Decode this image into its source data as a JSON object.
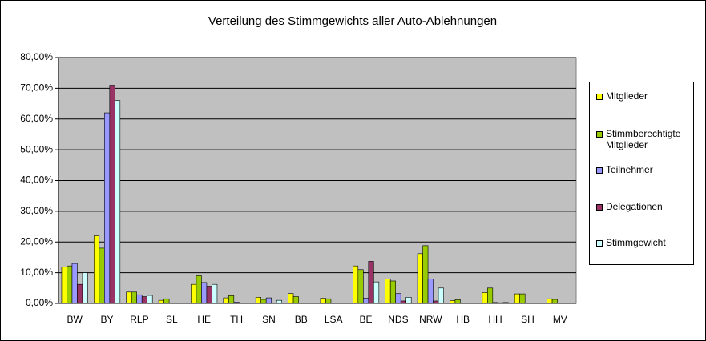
{
  "chart_data": {
    "type": "bar",
    "title": "Verteilung des Stimmgewichts aller Auto-Ablehnungen",
    "categories": [
      "BW",
      "BY",
      "RLP",
      "SL",
      "HE",
      "TH",
      "SN",
      "BB",
      "LSA",
      "BE",
      "NDS",
      "NRW",
      "HB",
      "HH",
      "SH",
      "MV"
    ],
    "series": [
      {
        "name": "Mitglieder",
        "color": "#ffff00",
        "values": [
          11.8,
          22,
          3.7,
          1.0,
          6.2,
          1.8,
          2.0,
          3.2,
          1.7,
          12.2,
          8,
          16.2,
          0.9,
          3.5,
          3.1,
          1.5
        ]
      },
      {
        "name": "Stimmberechtigte Mitglieder",
        "color": "#99cc00",
        "values": [
          12.2,
          18,
          3.7,
          1.5,
          9.0,
          2.5,
          1.3,
          2.2,
          1.5,
          11,
          7.3,
          18.8,
          1.2,
          5,
          3.1,
          1.3
        ]
      },
      {
        "name": "Teilnehmer",
        "color": "#9999ff",
        "values": [
          13,
          62,
          2.8,
          0,
          6.8,
          0.4,
          1.8,
          0,
          0,
          1.7,
          3.2,
          8,
          0,
          0.3,
          0,
          0
        ]
      },
      {
        "name": "Delegationen",
        "color": "#993366",
        "values": [
          6.2,
          71,
          2.2,
          0,
          5.6,
          0,
          0,
          0,
          0,
          13.7,
          0.8,
          0.8,
          0,
          0.2,
          0,
          0
        ]
      },
      {
        "name": "Stimmgewicht",
        "color": "#ccffff",
        "values": [
          10,
          66,
          2.6,
          0,
          6.2,
          0,
          1.0,
          0,
          0,
          7,
          2,
          5,
          0,
          0.3,
          0,
          0
        ]
      }
    ],
    "ylim": [
      0,
      80
    ],
    "yticks": [
      {
        "value": 0,
        "label": "0,00%"
      },
      {
        "value": 10,
        "label": "10,00%"
      },
      {
        "value": 20,
        "label": "20,00%"
      },
      {
        "value": 30,
        "label": "30,00%"
      },
      {
        "value": 40,
        "label": "40,00%"
      },
      {
        "value": 50,
        "label": "50,00%"
      },
      {
        "value": 60,
        "label": "60,00%"
      },
      {
        "value": 70,
        "label": "70,00%"
      },
      {
        "value": 80,
        "label": "80,00%"
      }
    ],
    "grid": true
  }
}
